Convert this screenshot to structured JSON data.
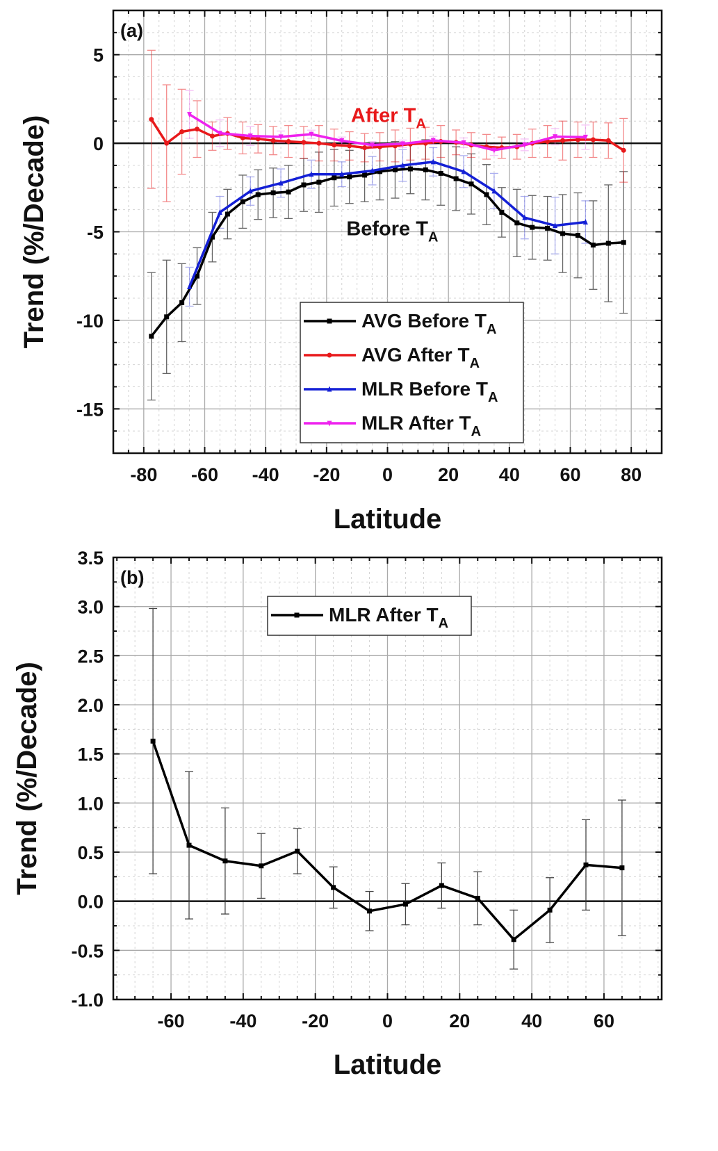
{
  "chart_data": [
    {
      "type": "line",
      "panel_label": "(a)",
      "xlabel": "Latitude",
      "ylabel": "Trend (%/Decade)",
      "xlim": [
        -90,
        90
      ],
      "ylim": [
        -17.5,
        7.5
      ],
      "xticks": [
        -80,
        -60,
        -40,
        -20,
        0,
        20,
        40,
        60,
        80
      ],
      "yticks": [
        5,
        0,
        -5,
        -10,
        -15
      ],
      "grid": true,
      "legend_position": "bottom-right",
      "series": [
        {
          "name": "AVG Before T",
          "name_sub": "A",
          "color": "#000000",
          "marker": "square",
          "error_color": "#333333",
          "x": [
            -77.5,
            -72.5,
            -67.5,
            -62.5,
            -57.5,
            -52.5,
            -47.5,
            -42.5,
            -37.5,
            -32.5,
            -27.5,
            -22.5,
            -17.5,
            -12.5,
            -7.5,
            -2.5,
            2.5,
            7.5,
            12.5,
            17.5,
            22.5,
            27.5,
            32.5,
            37.5,
            42.5,
            47.5,
            52.5,
            57.5,
            62.5,
            67.5,
            72.5,
            77.5
          ],
          "y": [
            -10.9,
            -9.8,
            -9.0,
            -7.5,
            -5.3,
            -4.0,
            -3.3,
            -2.9,
            -2.8,
            -2.75,
            -2.35,
            -2.2,
            -1.95,
            -1.9,
            -1.8,
            -1.6,
            -1.5,
            -1.45,
            -1.5,
            -1.7,
            -2.0,
            -2.3,
            -2.9,
            -3.9,
            -4.5,
            -4.75,
            -4.8,
            -5.1,
            -5.2,
            -5.75,
            -5.65,
            -5.6
          ],
          "error": [
            3.6,
            3.2,
            2.2,
            1.6,
            1.4,
            1.4,
            1.5,
            1.4,
            1.4,
            1.5,
            1.5,
            1.7,
            1.6,
            1.5,
            1.5,
            1.6,
            1.6,
            1.4,
            1.7,
            1.8,
            1.8,
            1.7,
            1.7,
            1.4,
            1.9,
            1.8,
            1.8,
            2.2,
            2.4,
            2.5,
            3.3,
            4.0
          ]
        },
        {
          "name": "AVG After T",
          "name_sub": "A",
          "color": "#e8191b",
          "marker": "circle",
          "error_color": "#e8191b",
          "x": [
            -77.5,
            -72.5,
            -67.5,
            -62.5,
            -57.5,
            -52.5,
            -47.5,
            -42.5,
            -37.5,
            -32.5,
            -27.5,
            -22.5,
            -17.5,
            -12.5,
            -7.5,
            -2.5,
            2.5,
            7.5,
            12.5,
            17.5,
            22.5,
            27.5,
            32.5,
            37.5,
            42.5,
            47.5,
            52.5,
            57.5,
            62.5,
            67.5,
            72.5,
            77.5
          ],
          "y": [
            1.35,
            0.0,
            0.65,
            0.8,
            0.4,
            0.55,
            0.3,
            0.25,
            0.15,
            0.1,
            0.05,
            0.0,
            -0.1,
            -0.15,
            -0.25,
            -0.2,
            -0.15,
            -0.05,
            0.0,
            0.1,
            0.05,
            -0.1,
            -0.2,
            -0.25,
            -0.2,
            0.0,
            0.1,
            0.15,
            0.2,
            0.2,
            0.15,
            -0.4
          ],
          "error": [
            3.9,
            3.3,
            2.4,
            1.6,
            0.8,
            0.9,
            0.9,
            0.8,
            0.8,
            0.9,
            0.9,
            1.0,
            0.9,
            0.8,
            0.8,
            0.8,
            0.9,
            0.9,
            0.9,
            0.9,
            0.7,
            0.7,
            0.7,
            0.6,
            0.7,
            0.8,
            0.9,
            1.1,
            1.0,
            1.0,
            1.0,
            1.8
          ]
        },
        {
          "name": "MLR Before T",
          "name_sub": "A",
          "color": "#1420d6",
          "marker": "triangle-up",
          "error_color": "#5a60e0",
          "x": [
            -65,
            -55,
            -45,
            -35,
            -25,
            -15,
            -5,
            5,
            15,
            25,
            35,
            45,
            55,
            65
          ],
          "y": [
            -8.1,
            -3.9,
            -2.7,
            -2.25,
            -1.75,
            -1.75,
            -1.55,
            -1.25,
            -1.05,
            -1.6,
            -2.7,
            -4.2,
            -4.65,
            -4.45
          ],
          "error": [
            1.1,
            0.9,
            0.8,
            0.8,
            0.8,
            0.7,
            0.8,
            0.9,
            0.8,
            0.9,
            1.0,
            1.2,
            1.6,
            1.2
          ]
        },
        {
          "name": "MLR After T",
          "name_sub": "A",
          "color": "#ee22ee",
          "marker": "triangle-down",
          "error_color": "#ee88ee",
          "x": [
            -65,
            -55,
            -45,
            -35,
            -25,
            -15,
            -5,
            5,
            15,
            25,
            35,
            45,
            55,
            65
          ],
          "y": [
            1.63,
            0.57,
            0.41,
            0.36,
            0.51,
            0.14,
            -0.1,
            -0.03,
            0.16,
            0.03,
            -0.39,
            -0.09,
            0.37,
            0.34
          ],
          "error": [
            1.35,
            0.75,
            0.54,
            0.33,
            0.23,
            0.21,
            0.2,
            0.21,
            0.23,
            0.27,
            0.3,
            0.33,
            0.46,
            0.69
          ]
        }
      ],
      "annotations": [
        {
          "text": "After T",
          "sub": "A",
          "color": "#e8191b",
          "x": -12,
          "y": 1.2
        },
        {
          "text": "Before T",
          "sub": "A",
          "color": "#111111",
          "x": -13.5,
          "y": -5.2
        }
      ]
    },
    {
      "type": "line",
      "panel_label": "(b)",
      "xlabel": "Latitude",
      "ylabel": "Trend (%/Decade)",
      "xlim": [
        -76,
        76
      ],
      "ylim": [
        -1.0,
        3.5
      ],
      "xticks": [
        -60,
        -40,
        -20,
        0,
        20,
        40,
        60
      ],
      "yticks": [
        3.5,
        3.0,
        2.5,
        2.0,
        1.5,
        1.0,
        0.5,
        0.0,
        -0.5,
        -1.0
      ],
      "ytick_labels": [
        "3.5",
        "3.0",
        "2.5",
        "2.0",
        "1.5",
        "1.0",
        "0.5",
        "0.0",
        "-0.5",
        "-1.0"
      ],
      "grid": true,
      "legend_position": "top-center",
      "series": [
        {
          "name": "MLR After T",
          "name_sub": "A",
          "color": "#000000",
          "marker": "square",
          "error_color": "#333333",
          "x": [
            -65,
            -55,
            -45,
            -35,
            -25,
            -15,
            -5,
            5,
            15,
            25,
            35,
            45,
            55,
            65
          ],
          "y": [
            1.63,
            0.57,
            0.41,
            0.36,
            0.51,
            0.14,
            -0.1,
            -0.03,
            0.16,
            0.03,
            -0.39,
            -0.09,
            0.37,
            0.34
          ],
          "error": [
            1.35,
            0.75,
            0.54,
            0.33,
            0.23,
            0.21,
            0.2,
            0.21,
            0.23,
            0.27,
            0.3,
            0.33,
            0.46,
            0.69
          ]
        }
      ]
    }
  ]
}
